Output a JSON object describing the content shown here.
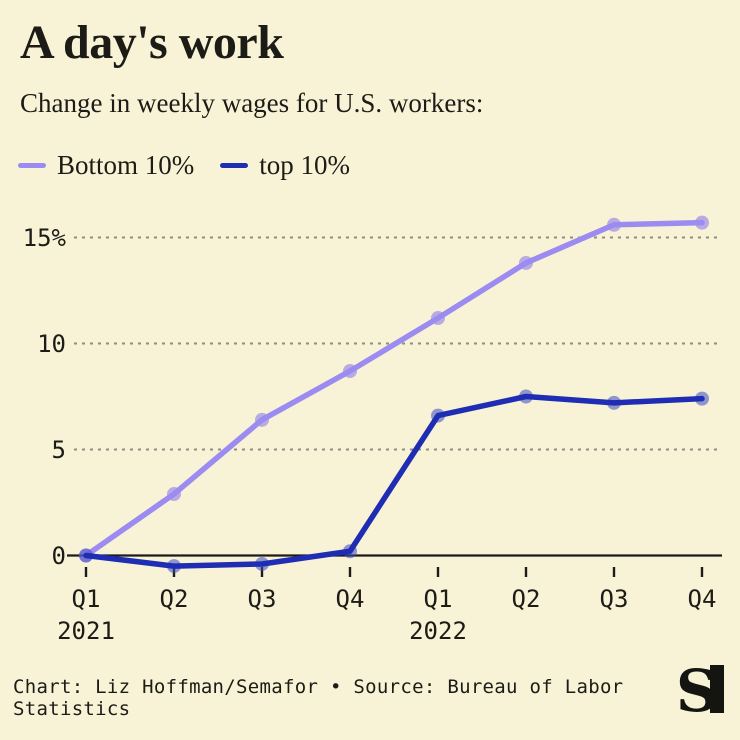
{
  "header": {
    "title": "A day's work",
    "subtitle": "Change in weekly wages for U.S. workers:"
  },
  "chart_data": {
    "type": "line",
    "categories": [
      "Q1",
      "Q2",
      "Q3",
      "Q4",
      "Q1",
      "Q2",
      "Q3",
      "Q4"
    ],
    "year_labels": [
      {
        "text": "2021",
        "at_index": 0
      },
      {
        "text": "2022",
        "at_index": 4
      }
    ],
    "series": [
      {
        "name": "Bottom 10%",
        "color": "#9c8bf0",
        "marker_color": "#8470ea",
        "values": [
          0,
          2.9,
          6.4,
          8.7,
          11.2,
          13.8,
          15.6,
          15.7
        ]
      },
      {
        "name": "top 10%",
        "color": "#1e2db3",
        "marker_color": "#3a49c2",
        "values": [
          0,
          -0.5,
          -0.4,
          0.2,
          6.6,
          7.5,
          7.2,
          7.4
        ]
      }
    ],
    "unit": "%",
    "y_ticks": [
      {
        "value": 15,
        "label": "15%"
      },
      {
        "value": 10,
        "label": "10"
      },
      {
        "value": 5,
        "label": "5"
      },
      {
        "value": 0,
        "label": "0"
      }
    ],
    "ylim": [
      -1.2,
      16.8
    ],
    "grid": "horizontal-dotted",
    "legend_position": "top-left"
  },
  "footer": {
    "credit": "Chart: Liz Hoffman/Semafor • Source: Bureau of Labor Statistics",
    "logo_text": "S"
  },
  "colors": {
    "background": "#f8f3d7",
    "text": "#1c1b15",
    "grid": "#8f8d7f",
    "axis": "#1c1b15",
    "logo": "#141410"
  }
}
